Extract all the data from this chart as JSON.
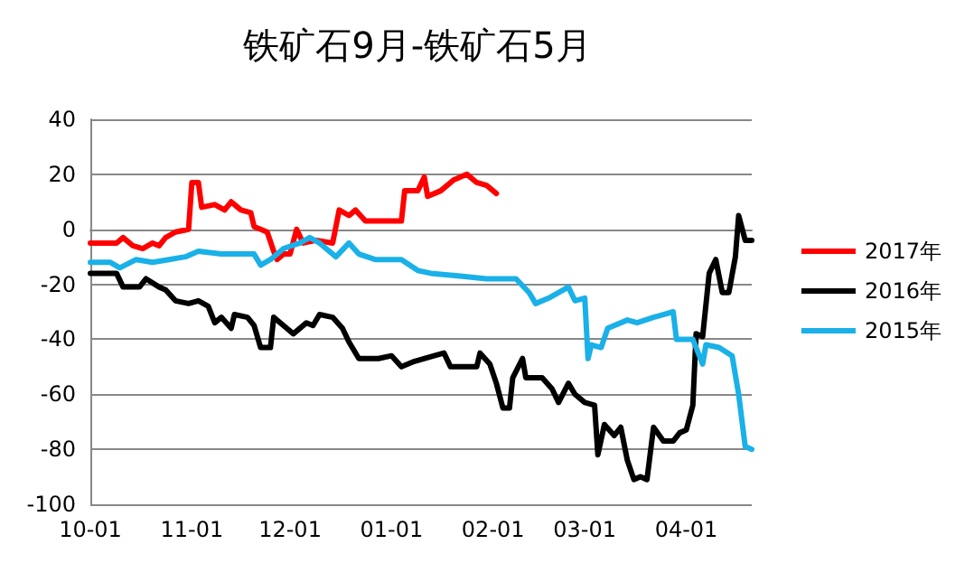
{
  "chart_data": {
    "type": "line",
    "title": "铁矿石9月-铁矿石5月",
    "xlim": [
      "2016-10-01",
      "2017-04-21"
    ],
    "xticks": [
      {
        "value": "2016-10-01",
        "label": "10-01"
      },
      {
        "value": "2016-11-01",
        "label": "11-01"
      },
      {
        "value": "2016-12-01",
        "label": "12-01"
      },
      {
        "value": "2017-01-01",
        "label": "01-01"
      },
      {
        "value": "2017-02-01",
        "label": "02-01"
      },
      {
        "value": "2017-03-01",
        "label": "03-01"
      },
      {
        "value": "2017-04-01",
        "label": "04-01"
      }
    ],
    "ylim": [
      -100,
      40
    ],
    "yticks": [
      -100,
      -80,
      -60,
      -40,
      -20,
      0,
      20,
      40
    ],
    "grid": "y",
    "legend": "right",
    "marker": "none",
    "line_style": "solid",
    "series": [
      {
        "name": "2017年",
        "color": "#ff0000",
        "x": [
          "2016-10-01",
          "2016-10-09",
          "2016-10-11",
          "2016-10-14",
          "2016-10-17",
          "2016-10-20",
          "2016-10-22",
          "2016-10-24",
          "2016-10-27",
          "2016-10-31",
          "2016-11-01",
          "2016-11-03",
          "2016-11-04",
          "2016-11-08",
          "2016-11-11",
          "2016-11-13",
          "2016-11-16",
          "2016-11-19",
          "2016-11-20",
          "2016-11-24",
          "2016-11-26",
          "2016-11-27",
          "2016-11-29",
          "2016-12-01",
          "2016-12-03",
          "2016-12-05",
          "2016-12-09",
          "2016-12-14",
          "2016-12-16",
          "2016-12-19",
          "2016-12-21",
          "2016-12-24",
          "2016-12-28",
          "2017-01-04",
          "2017-01-05",
          "2017-01-09",
          "2017-01-11",
          "2017-01-12",
          "2017-01-16",
          "2017-01-20",
          "2017-01-24",
          "2017-01-27",
          "2017-01-30",
          "2017-02-02"
        ],
        "values": [
          -5,
          -5,
          -3,
          -6,
          -7,
          -5,
          -6,
          -3,
          -1,
          0,
          17,
          17,
          8,
          9,
          7,
          10,
          7,
          6,
          1,
          -1,
          -8,
          -11,
          -9,
          -9,
          0,
          -5,
          -4,
          -5,
          7,
          5,
          7,
          3,
          3,
          3,
          14,
          14,
          19,
          12,
          14,
          18,
          20,
          17,
          16,
          13
        ]
      },
      {
        "name": "2016年",
        "color": "#000000",
        "x": [
          "2016-10-01",
          "2016-10-09",
          "2016-10-11",
          "2016-10-16",
          "2016-10-18",
          "2016-10-22",
          "2016-10-24",
          "2016-10-27",
          "2016-10-31",
          "2016-11-03",
          "2016-11-06",
          "2016-11-08",
          "2016-11-10",
          "2016-11-13",
          "2016-11-14",
          "2016-11-18",
          "2016-11-20",
          "2016-11-22",
          "2016-11-25",
          "2016-11-26",
          "2016-11-29",
          "2016-12-02",
          "2016-12-06",
          "2016-12-08",
          "2016-12-10",
          "2016-12-14",
          "2016-12-17",
          "2016-12-19",
          "2016-12-22",
          "2016-12-24",
          "2016-12-28",
          "2017-01-01",
          "2017-01-04",
          "2017-01-08",
          "2017-01-14",
          "2017-01-17",
          "2017-01-19",
          "2017-01-27",
          "2017-01-28",
          "2017-01-31",
          "2017-02-02",
          "2017-02-04",
          "2017-02-06",
          "2017-02-07",
          "2017-02-10",
          "2017-02-11",
          "2017-02-16",
          "2017-02-19",
          "2017-02-21",
          "2017-02-24",
          "2017-02-26",
          "2017-03-01",
          "2017-03-04",
          "2017-03-05",
          "2017-03-07",
          "2017-03-10",
          "2017-03-12",
          "2017-03-14",
          "2017-03-16",
          "2017-03-18",
          "2017-03-20",
          "2017-03-22",
          "2017-03-25",
          "2017-03-28",
          "2017-03-30",
          "2017-04-01",
          "2017-04-03",
          "2017-04-04",
          "2017-04-06",
          "2017-04-08",
          "2017-04-10",
          "2017-04-12",
          "2017-04-14",
          "2017-04-16",
          "2017-04-17",
          "2017-04-19",
          "2017-04-21"
        ],
        "values": [
          -16,
          -16,
          -21,
          -21,
          -18,
          -21,
          -22,
          -26,
          -27,
          -26,
          -28,
          -34,
          -32,
          -36,
          -31,
          -32,
          -35,
          -43,
          -43,
          -32,
          -35,
          -38,
          -34,
          -35,
          -31,
          -32,
          -36,
          -41,
          -47,
          -47,
          -47,
          -46,
          -50,
          -48,
          -46,
          -45,
          -50,
          -50,
          -45,
          -49,
          -56,
          -65,
          -65,
          -54,
          -47,
          -54,
          -54,
          -58,
          -63,
          -56,
          -60,
          -63,
          -64,
          -82,
          -71,
          -75,
          -72,
          -84,
          -91,
          -90,
          -91,
          -72,
          -77,
          -77,
          -74,
          -73,
          -64,
          -38,
          -39,
          -16,
          -11,
          -23,
          -23,
          -10,
          5,
          -4,
          -4
        ]
      },
      {
        "name": "2015年",
        "color": "#1ab0e8",
        "x": [
          "2016-10-01",
          "2016-10-07",
          "2016-10-10",
          "2016-10-15",
          "2016-10-20",
          "2016-10-25",
          "2016-10-30",
          "2016-11-03",
          "2016-11-10",
          "2016-11-20",
          "2016-11-22",
          "2016-11-25",
          "2016-11-29",
          "2016-12-04",
          "2016-12-07",
          "2016-12-10",
          "2016-12-15",
          "2016-12-19",
          "2016-12-22",
          "2016-12-27",
          "2016-12-28",
          "2017-01-04",
          "2017-01-09",
          "2017-01-13",
          "2017-01-22",
          "2017-01-30",
          "2017-02-08",
          "2017-02-12",
          "2017-02-14",
          "2017-02-18",
          "2017-02-24",
          "2017-02-26",
          "2017-03-01",
          "2017-03-02",
          "2017-03-03",
          "2017-03-06",
          "2017-03-08",
          "2017-03-14",
          "2017-03-17",
          "2017-03-22",
          "2017-03-25",
          "2017-03-28",
          "2017-03-29",
          "2017-04-03",
          "2017-04-06",
          "2017-04-07",
          "2017-04-11",
          "2017-04-15",
          "2017-04-17",
          "2017-04-19",
          "2017-04-21"
        ],
        "values": [
          -12,
          -12,
          -14,
          -11,
          -12,
          -11,
          -10,
          -8,
          -9,
          -9,
          -13,
          -11,
          -7,
          -5,
          -3,
          -5,
          -10,
          -5,
          -9,
          -11,
          -11,
          -11,
          -15,
          -16,
          -17,
          -18,
          -18,
          -23,
          -27,
          -25,
          -21,
          -26,
          -25,
          -47,
          -42,
          -43,
          -36,
          -33,
          -34,
          -32,
          -31,
          -30,
          -40,
          -40,
          -49,
          -42,
          -43,
          -46,
          -60,
          -79,
          -80
        ]
      }
    ]
  }
}
